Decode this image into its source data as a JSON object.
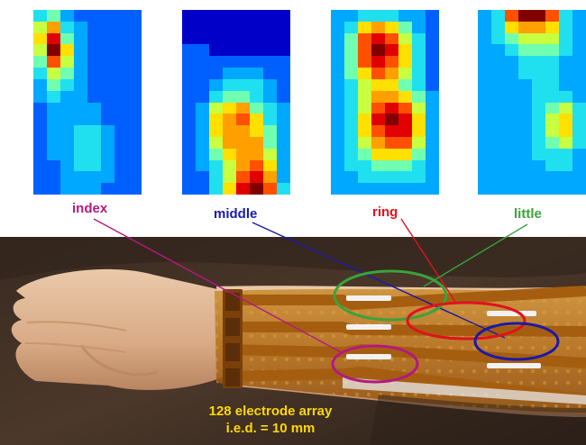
{
  "labels": {
    "index": "index",
    "middle": "middle",
    "ring": "ring",
    "little": "little"
  },
  "caption": {
    "line1": "128 electrode array",
    "line2": "i.e.d. = 10 mm"
  },
  "colors": {
    "index": "#b4197f",
    "middle": "#1a1aa8",
    "ring": "#e0121c",
    "little": "#3aa33a",
    "caption": "#ffd800"
  },
  "heatmaps": [
    {
      "name": "index",
      "grid": [
        [
          3,
          4,
          2,
          1,
          1,
          1,
          1,
          1
        ],
        [
          5,
          7,
          3,
          2,
          1,
          1,
          1,
          1
        ],
        [
          6,
          9,
          4,
          2,
          1,
          1,
          1,
          1
        ],
        [
          5,
          10,
          6,
          2,
          1,
          1,
          1,
          1
        ],
        [
          4,
          8,
          5,
          2,
          1,
          1,
          1,
          1
        ],
        [
          3,
          5,
          4,
          2,
          1,
          1,
          1,
          1
        ],
        [
          2,
          4,
          3,
          2,
          1,
          1,
          1,
          1
        ],
        [
          2,
          3,
          2,
          2,
          1,
          1,
          1,
          1
        ],
        [
          1,
          2,
          2,
          2,
          2,
          1,
          1,
          1
        ],
        [
          1,
          2,
          2,
          2,
          2,
          1,
          1,
          1
        ],
        [
          1,
          2,
          2,
          3,
          3,
          2,
          1,
          1
        ],
        [
          1,
          2,
          2,
          3,
          3,
          2,
          1,
          1
        ],
        [
          1,
          2,
          2,
          3,
          3,
          2,
          1,
          1
        ],
        [
          1,
          1,
          2,
          3,
          3,
          2,
          1,
          1
        ],
        [
          1,
          1,
          2,
          2,
          2,
          2,
          1,
          1
        ],
        [
          1,
          1,
          2,
          2,
          2,
          1,
          1,
          1
        ]
      ]
    },
    {
      "name": "middle",
      "grid": [
        [
          0,
          0,
          0,
          0,
          0,
          0,
          0,
          0
        ],
        [
          0,
          0,
          0,
          0,
          0,
          0,
          0,
          0
        ],
        [
          0,
          0,
          0,
          0,
          0,
          0,
          0,
          0
        ],
        [
          1,
          1,
          0,
          0,
          0,
          0,
          0,
          0
        ],
        [
          1,
          1,
          1,
          1,
          1,
          1,
          1,
          1
        ],
        [
          1,
          1,
          1,
          2,
          2,
          2,
          1,
          1
        ],
        [
          1,
          1,
          2,
          3,
          3,
          3,
          2,
          1
        ],
        [
          1,
          1,
          3,
          4,
          4,
          3,
          2,
          1
        ],
        [
          1,
          2,
          5,
          6,
          7,
          4,
          3,
          2
        ],
        [
          1,
          2,
          6,
          7,
          8,
          6,
          3,
          2
        ],
        [
          1,
          2,
          6,
          7,
          7,
          6,
          4,
          2
        ],
        [
          1,
          2,
          5,
          7,
          7,
          7,
          4,
          2
        ],
        [
          1,
          2,
          4,
          6,
          7,
          7,
          5,
          2
        ],
        [
          1,
          2,
          3,
          5,
          7,
          8,
          6,
          2
        ],
        [
          1,
          1,
          3,
          5,
          8,
          9,
          7,
          2
        ],
        [
          1,
          1,
          3,
          6,
          9,
          10,
          8,
          3
        ]
      ]
    },
    {
      "name": "ring",
      "grid": [
        [
          2,
          2,
          3,
          3,
          3,
          2,
          2,
          1
        ],
        [
          2,
          3,
          6,
          7,
          6,
          4,
          2,
          1
        ],
        [
          2,
          4,
          8,
          9,
          8,
          5,
          3,
          1
        ],
        [
          2,
          4,
          8,
          10,
          9,
          6,
          3,
          1
        ],
        [
          2,
          4,
          8,
          9,
          8,
          6,
          3,
          1
        ],
        [
          2,
          4,
          6,
          8,
          7,
          5,
          3,
          1
        ],
        [
          2,
          3,
          5,
          6,
          6,
          4,
          3,
          1
        ],
        [
          2,
          3,
          5,
          7,
          7,
          6,
          4,
          2
        ],
        [
          2,
          3,
          5,
          8,
          9,
          8,
          5,
          2
        ],
        [
          2,
          3,
          6,
          9,
          10,
          9,
          6,
          2
        ],
        [
          2,
          3,
          6,
          8,
          9,
          9,
          6,
          2
        ],
        [
          2,
          3,
          5,
          7,
          8,
          8,
          5,
          2
        ],
        [
          2,
          3,
          4,
          6,
          6,
          6,
          4,
          2
        ],
        [
          2,
          3,
          3,
          4,
          4,
          4,
          3,
          2
        ],
        [
          2,
          2,
          3,
          3,
          3,
          3,
          3,
          2
        ],
        [
          2,
          2,
          2,
          2,
          2,
          2,
          2,
          2
        ]
      ]
    },
    {
      "name": "little",
      "grid": [
        [
          2,
          3,
          8,
          10,
          10,
          8,
          3,
          2
        ],
        [
          2,
          3,
          6,
          7,
          7,
          6,
          3,
          2
        ],
        [
          2,
          3,
          4,
          5,
          5,
          5,
          3,
          2
        ],
        [
          2,
          2,
          3,
          4,
          4,
          4,
          3,
          2
        ],
        [
          2,
          2,
          2,
          3,
          3,
          3,
          2,
          2
        ],
        [
          2,
          2,
          2,
          3,
          3,
          3,
          2,
          2
        ],
        [
          2,
          2,
          2,
          2,
          3,
          3,
          2,
          2
        ],
        [
          2,
          2,
          2,
          2,
          3,
          3,
          3,
          2
        ],
        [
          2,
          2,
          2,
          2,
          3,
          4,
          5,
          3
        ],
        [
          2,
          2,
          2,
          2,
          3,
          5,
          6,
          3
        ],
        [
          2,
          2,
          2,
          2,
          3,
          5,
          6,
          3
        ],
        [
          2,
          2,
          2,
          2,
          3,
          4,
          5,
          3
        ],
        [
          2,
          2,
          2,
          2,
          3,
          3,
          3,
          2
        ],
        [
          2,
          2,
          2,
          2,
          2,
          3,
          3,
          2
        ],
        [
          2,
          2,
          2,
          2,
          2,
          2,
          2,
          2
        ],
        [
          2,
          2,
          2,
          2,
          2,
          2,
          2,
          2
        ]
      ]
    }
  ]
}
